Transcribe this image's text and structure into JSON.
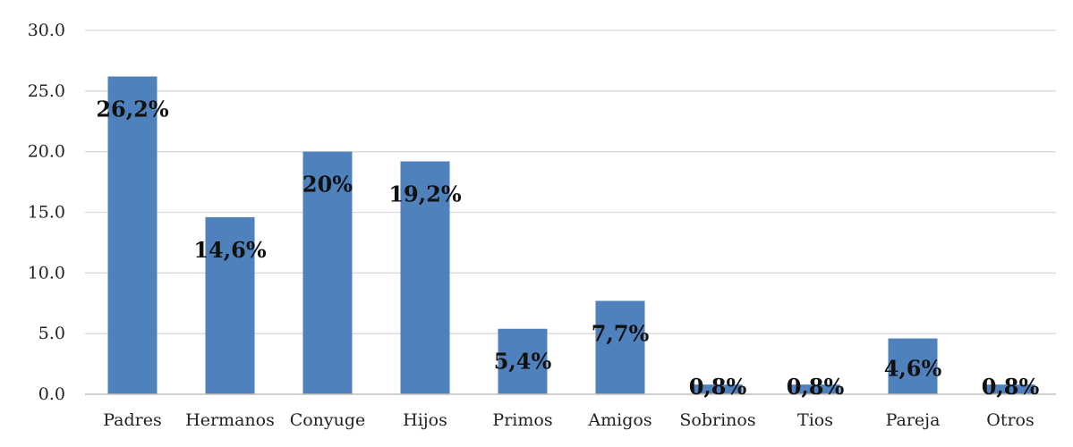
{
  "chart_data": {
    "type": "bar",
    "categories": [
      "Padres",
      "Hermanos",
      "Conyuge",
      "Hijos",
      "Primos",
      "Amigos",
      "Sobrinos",
      "Tios",
      "Pareja",
      "Otros"
    ],
    "values": [
      26.2,
      14.6,
      20.0,
      19.2,
      5.4,
      7.7,
      0.8,
      0.8,
      4.6,
      0.8
    ],
    "data_labels": [
      "26,2%",
      "14,6%",
      "20%",
      "19,2%",
      "5,4%",
      "7,7%",
      "0,8%",
      "0,8%",
      "4,6%",
      "0,8%"
    ],
    "y_ticks": [
      "0.0",
      "5.0",
      "10.0",
      "15.0",
      "20.0",
      "25.0",
      "30.0"
    ],
    "ylim": [
      0,
      30
    ],
    "grid": true,
    "legend": "none",
    "bar_color": "#4f81bd",
    "title": "",
    "xlabel": "",
    "ylabel": ""
  }
}
